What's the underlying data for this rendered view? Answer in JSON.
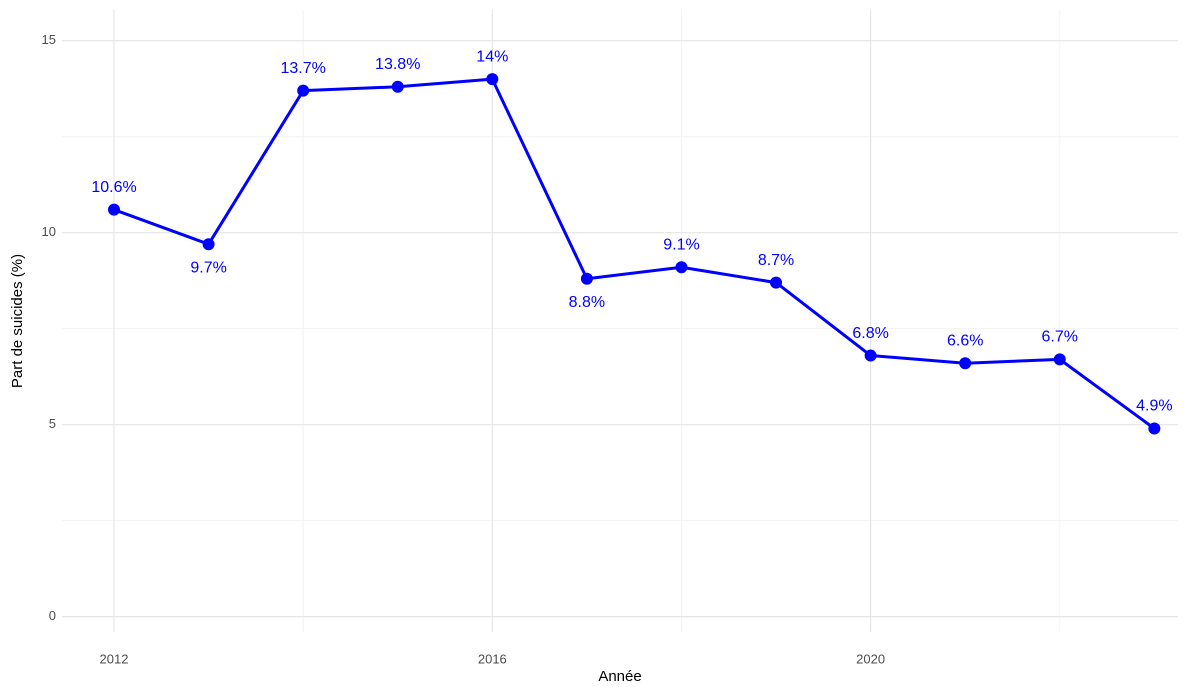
{
  "chart_data": {
    "type": "line",
    "x_label": "Année",
    "y_label": "Part de suicides (%)",
    "x": [
      2012,
      2013,
      2014,
      2015,
      2016,
      2017,
      2018,
      2019,
      2020,
      2021,
      2022,
      2023
    ],
    "series": [
      {
        "name": "Part de suicides",
        "color": "#0000ff",
        "values": [
          10.6,
          9.7,
          13.7,
          13.8,
          14,
          8.8,
          9.1,
          8.7,
          6.8,
          6.6,
          6.7,
          4.9
        ],
        "value_labels": [
          "10.6%",
          "9.7%",
          "13.7%",
          "13.8%",
          "14%",
          "8.8%",
          "9.1%",
          "8.7%",
          "6.8%",
          "6.6%",
          "6.7%",
          "4.9%"
        ]
      }
    ],
    "xlim": [
      2011.45,
      2023.25
    ],
    "xticks": [
      2012,
      2016,
      2020
    ],
    "xminor": [
      2014,
      2018,
      2022
    ],
    "ylim": [
      -0.4,
      15.8
    ],
    "yticks": [
      0,
      5,
      10,
      15
    ],
    "yminor": [
      2.5,
      7.5,
      12.5
    ],
    "grid": true
  }
}
